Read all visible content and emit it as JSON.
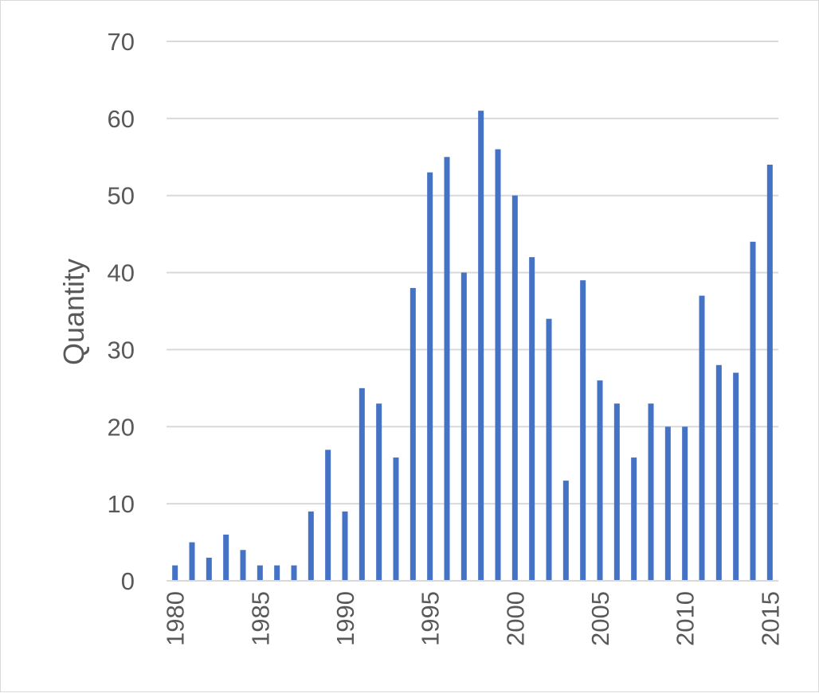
{
  "chart_data": {
    "type": "bar",
    "title": "",
    "xlabel": "",
    "ylabel": "Quantity",
    "ylim": [
      0,
      70
    ],
    "yticks": [
      0,
      10,
      20,
      30,
      40,
      50,
      60,
      70
    ],
    "grid": true,
    "legend": "none",
    "color": "#4472C4",
    "xtick_labels": [
      "1980",
      "1985",
      "1990",
      "1995",
      "2000",
      "2005",
      "2010",
      "2015"
    ],
    "categories": [
      1980,
      1981,
      1982,
      1983,
      1984,
      1985,
      1986,
      1987,
      1988,
      1989,
      1990,
      1991,
      1992,
      1993,
      1994,
      1995,
      1996,
      1997,
      1998,
      1999,
      2000,
      2001,
      2002,
      2003,
      2004,
      2005,
      2006,
      2007,
      2008,
      2009,
      2010,
      2011,
      2012,
      2013,
      2014,
      2015
    ],
    "values": [
      2,
      5,
      3,
      6,
      4,
      2,
      2,
      2,
      9,
      17,
      9,
      25,
      23,
      16,
      38,
      53,
      55,
      40,
      61,
      56,
      50,
      42,
      34,
      13,
      39,
      26,
      23,
      16,
      23,
      20,
      20,
      37,
      28,
      27,
      44,
      54
    ]
  }
}
